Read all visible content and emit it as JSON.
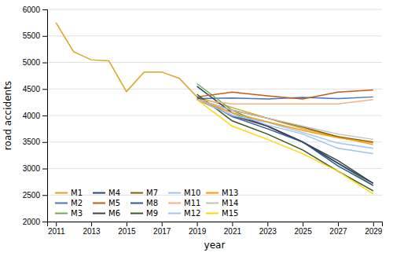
{
  "chart_data": {
    "type": "line",
    "xlabel": "year",
    "ylabel": "road accidents",
    "x": [
      2011,
      2012,
      2013,
      2014,
      2015,
      2016,
      2017,
      2018,
      2019,
      2021,
      2023,
      2025,
      2027,
      2029
    ],
    "xlim": [
      2010.5,
      2029.5
    ],
    "xticks": [
      2011,
      2013,
      2015,
      2017,
      2019,
      2021,
      2023,
      2025,
      2027,
      2029
    ],
    "ylim": [
      2000,
      6000
    ],
    "yticks": [
      2000,
      2500,
      3000,
      3500,
      4000,
      4500,
      5000,
      5500,
      6000
    ],
    "grid": true,
    "legend": "lower left",
    "series": [
      {
        "name": "M1",
        "color": "#DAA520",
        "values": [
          5750,
          5200,
          5050,
          5030,
          4450,
          4820,
          4820,
          4700,
          4350,
          4150,
          3950,
          3750,
          3600,
          3450
        ]
      },
      {
        "name": "M2",
        "color": "#4472C4",
        "values": [
          null,
          null,
          null,
          null,
          null,
          null,
          null,
          null,
          4320,
          4330,
          4310,
          4340,
          4320,
          4350
        ]
      },
      {
        "name": "M3",
        "color": "#70AD47",
        "values": [
          null,
          null,
          null,
          null,
          null,
          null,
          null,
          null,
          4600,
          4100,
          3800,
          3500,
          3100,
          2680
        ]
      },
      {
        "name": "M4",
        "color": "#264478",
        "values": [
          null,
          null,
          null,
          null,
          null,
          null,
          null,
          null,
          4550,
          4050,
          3800,
          3500,
          3100,
          2720
        ]
      },
      {
        "name": "M5",
        "color": "#C55A11",
        "values": [
          null,
          null,
          null,
          null,
          null,
          null,
          null,
          null,
          4350,
          4440,
          4370,
          4310,
          4440,
          4480
        ]
      },
      {
        "name": "M6",
        "color": "#404040",
        "values": [
          null,
          null,
          null,
          null,
          null,
          null,
          null,
          null,
          4300,
          4000,
          3800,
          3500,
          3150,
          2720
        ]
      },
      {
        "name": "M7",
        "color": "#7F6000",
        "values": [
          null,
          null,
          null,
          null,
          null,
          null,
          null,
          null,
          4300,
          4100,
          3950,
          3780,
          3600,
          3500
        ]
      },
      {
        "name": "M8",
        "color": "#2F5496",
        "values": [
          null,
          null,
          null,
          null,
          null,
          null,
          null,
          null,
          4350,
          3980,
          3750,
          3500,
          3050,
          2680
        ]
      },
      {
        "name": "M9",
        "color": "#375623",
        "values": [
          null,
          null,
          null,
          null,
          null,
          null,
          null,
          null,
          4400,
          3900,
          3650,
          3350,
          2950,
          2580
        ]
      },
      {
        "name": "M10",
        "color": "#9DC3E6",
        "values": [
          null,
          null,
          null,
          null,
          null,
          null,
          null,
          null,
          4300,
          4050,
          3820,
          3650,
          3380,
          3280
        ]
      },
      {
        "name": "M11",
        "color": "#F4B183",
        "values": [
          null,
          null,
          null,
          null,
          null,
          null,
          null,
          null,
          4300,
          4220,
          4220,
          4220,
          4220,
          4300
        ]
      },
      {
        "name": "M12",
        "color": "#9DC3FF",
        "values": [
          null,
          null,
          null,
          null,
          null,
          null,
          null,
          null,
          4300,
          4000,
          3870,
          3680,
          3480,
          3380
        ]
      },
      {
        "name": "M13",
        "color": "#FF9900",
        "values": [
          null,
          null,
          null,
          null,
          null,
          null,
          null,
          null,
          4300,
          4050,
          3880,
          3720,
          3580,
          3480
        ]
      },
      {
        "name": "M14",
        "color": "#C0C0C0",
        "values": [
          null,
          null,
          null,
          null,
          null,
          null,
          null,
          null,
          4300,
          4100,
          3950,
          3800,
          3650,
          3550
        ]
      },
      {
        "name": "M15",
        "color": "#FFD700",
        "values": [
          null,
          null,
          null,
          null,
          null,
          null,
          null,
          null,
          4300,
          3800,
          3550,
          3280,
          2950,
          2520
        ]
      }
    ]
  }
}
